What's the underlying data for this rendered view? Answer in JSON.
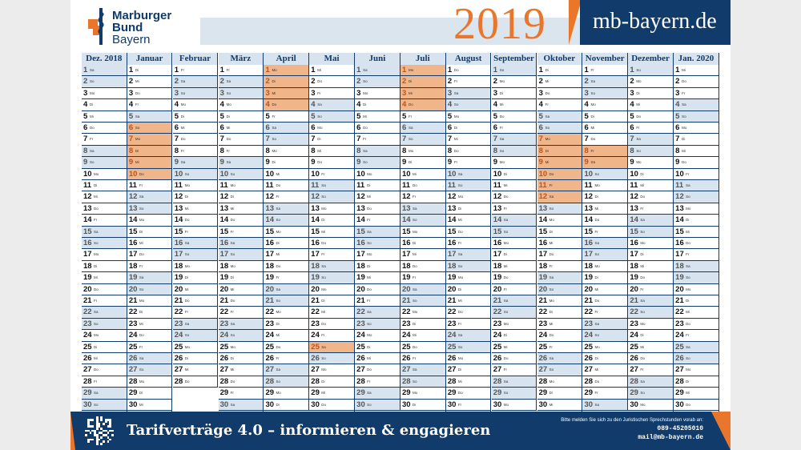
{
  "header": {
    "logo_lines": [
      "Marburger",
      "Bund",
      "Bayern"
    ],
    "year": "2019",
    "site": "mb-bayern.de"
  },
  "calendar": {
    "columns": [
      {
        "label": "Dez. 2018",
        "first_weekday": 5,
        "days": 31
      },
      {
        "label": "Januar",
        "first_weekday": 1,
        "days": 31
      },
      {
        "label": "Februar",
        "first_weekday": 4,
        "days": 28
      },
      {
        "label": "März",
        "first_weekday": 4,
        "days": 31
      },
      {
        "label": "April",
        "first_weekday": 0,
        "days": 30
      },
      {
        "label": "Mai",
        "first_weekday": 2,
        "days": 31
      },
      {
        "label": "Juni",
        "first_weekday": 5,
        "days": 30
      },
      {
        "label": "Juli",
        "first_weekday": 0,
        "days": 31
      },
      {
        "label": "August",
        "first_weekday": 3,
        "days": 31
      },
      {
        "label": "September",
        "first_weekday": 6,
        "days": 30
      },
      {
        "label": "Oktober",
        "first_weekday": 1,
        "days": 31
      },
      {
        "label": "November",
        "first_weekday": 4,
        "days": 30
      },
      {
        "label": "Dezember",
        "first_weekday": 6,
        "days": 31
      },
      {
        "label": "Jan. 2020",
        "first_weekday": 2,
        "days": 31
      }
    ],
    "weekday_abbr": [
      "Mo",
      "Di",
      "Mi",
      "Do",
      "Fr",
      "Sa",
      "So"
    ],
    "highlighted_days": {
      "1": [
        6,
        7,
        8,
        9,
        10
      ],
      "4": [
        1,
        2,
        3,
        4
      ],
      "5": [
        25
      ],
      "7": [
        1,
        2,
        3,
        4
      ],
      "10": [
        7,
        8,
        9,
        10,
        11,
        12
      ],
      "11": [
        8,
        9
      ]
    }
  },
  "footer": {
    "slogan": "Tarifverträge 4.0 – informieren & engagieren",
    "hint": "Bitte melden Sie sich zu den Juristischen Sprechstunden vorab an:",
    "phone": "089-45205010",
    "email": "mail@mb-bayern.de"
  },
  "colors": {
    "navy": "#103b6a",
    "orange": "#e9762b",
    "weekend": "#d7e3ee",
    "highlight": "#f1b58a"
  }
}
